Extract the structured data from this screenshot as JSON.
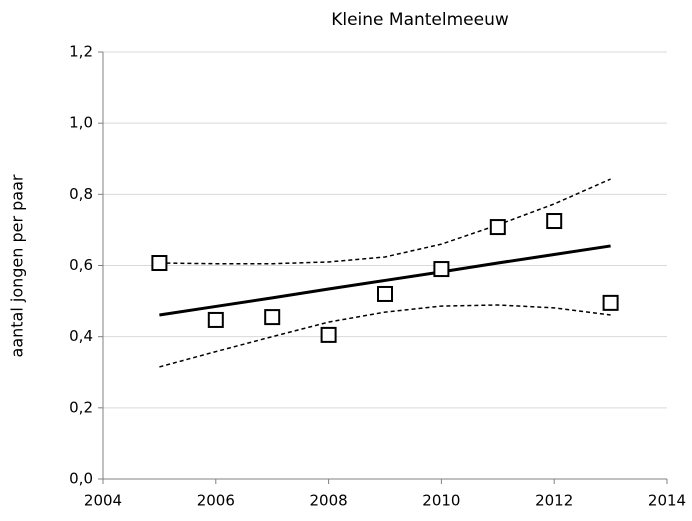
{
  "chart_data": {
    "type": "line",
    "title": "Kleine Mantelmeeuw",
    "y_label": "aantal jongen per paar",
    "x": [
      2005,
      2006,
      2007,
      2008,
      2009,
      2010,
      2011,
      2012,
      2013
    ],
    "series": [
      {
        "kind": "scatter",
        "marker": "square",
        "color": "#000000",
        "values": [
          0.607,
          0.447,
          0.455,
          0.405,
          0.52,
          0.59,
          0.708,
          0.725,
          0.495
        ]
      },
      {
        "kind": "line",
        "style": "solid",
        "color": "#000000",
        "values": [
          0.461,
          0.485,
          0.509,
          0.534,
          0.558,
          0.582,
          0.607,
          0.631,
          0.655
        ]
      },
      {
        "kind": "line",
        "style": "dashed",
        "color": "#000000",
        "values": [
          0.607,
          0.605,
          0.605,
          0.61,
          0.624,
          0.66,
          0.714,
          0.773,
          0.843
        ]
      },
      {
        "kind": "line",
        "style": "dashed",
        "color": "#000000",
        "values": [
          0.315,
          0.358,
          0.4,
          0.441,
          0.469,
          0.486,
          0.489,
          0.481,
          0.461
        ]
      }
    ],
    "xlim": [
      2004,
      2014
    ],
    "xticks": [
      2004,
      2006,
      2008,
      2010,
      2012,
      2014
    ],
    "ylim": [
      0,
      1.2
    ],
    "yticks": [
      {
        "value": 0,
        "label": "0,0"
      },
      {
        "value": 0.2,
        "label": "0,2"
      },
      {
        "value": 0.4,
        "label": "0,4"
      },
      {
        "value": 0.6,
        "label": "0,6"
      },
      {
        "value": 0.8,
        "label": "0,8"
      },
      {
        "value": 1.0,
        "label": "1,0"
      },
      {
        "value": 1.2,
        "label": "1,2"
      }
    ],
    "grid": true
  }
}
